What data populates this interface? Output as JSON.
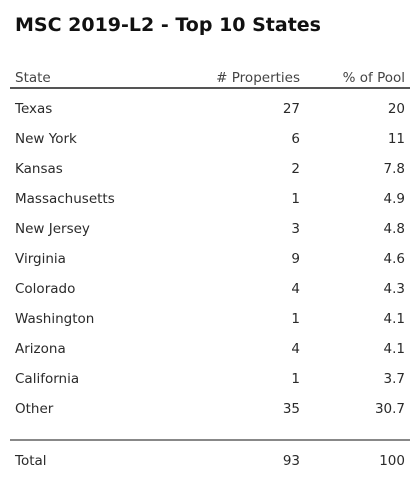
{
  "title": "MSC 2019-L2 - Top 10 States",
  "columns": {
    "state": "State",
    "properties": "# Properties",
    "pool": "% of Pool"
  },
  "rows": [
    {
      "state": "Texas",
      "properties": "27",
      "pool": "20"
    },
    {
      "state": "New York",
      "properties": "6",
      "pool": "11"
    },
    {
      "state": "Kansas",
      "properties": "2",
      "pool": "7.8"
    },
    {
      "state": "Massachusetts",
      "properties": "1",
      "pool": "4.9"
    },
    {
      "state": "New Jersey",
      "properties": "3",
      "pool": "4.8"
    },
    {
      "state": "Virginia",
      "properties": "9",
      "pool": "4.6"
    },
    {
      "state": "Colorado",
      "properties": "4",
      "pool": "4.3"
    },
    {
      "state": "Washington",
      "properties": "1",
      "pool": "4.1"
    },
    {
      "state": "Arizona",
      "properties": "4",
      "pool": "4.1"
    },
    {
      "state": "California",
      "properties": "1",
      "pool": "3.7"
    },
    {
      "state": "Other",
      "properties": "35",
      "pool": "30.7"
    }
  ],
  "total": {
    "label": "Total",
    "properties": "93",
    "pool": "100"
  }
}
